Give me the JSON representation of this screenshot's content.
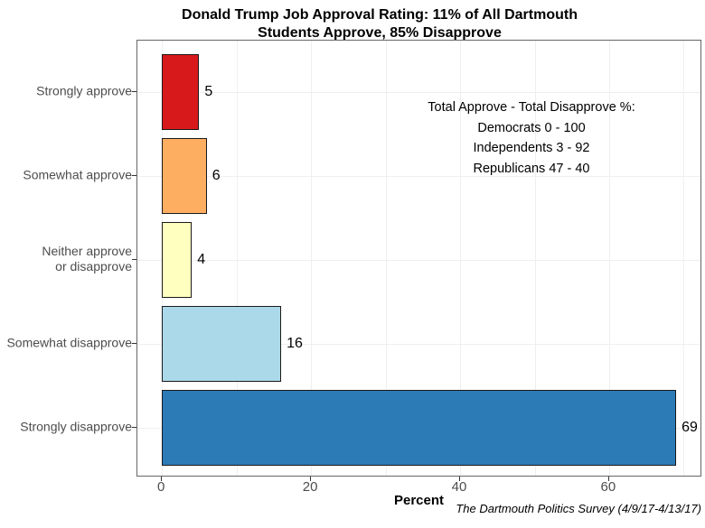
{
  "title_lines": [
    "Donald Trump Job Approval Rating: 11% of All Dartmouth",
    "Students Approve, 85% Disapprove"
  ],
  "annotation": {
    "lines": [
      "Total Approve - Total Disapprove %:",
      "Democrats 0 - 100",
      "Independents 3 - 92",
      "Republicans 47 - 40"
    ]
  },
  "caption": "The Dartmouth Politics Survey (4/9/17-4/13/17)",
  "chart_data": {
    "type": "bar",
    "orientation": "horizontal",
    "title": "Donald Trump Job Approval Rating: 11% of All Dartmouth Students Approve, 85% Disapprove",
    "categories": [
      "Strongly approve",
      "Somewhat approve",
      "Neither approve or disapprove",
      "Somewhat disapprove",
      "Strongly disapprove"
    ],
    "category_display_lines": [
      [
        "Strongly approve"
      ],
      [
        "Somewhat approve"
      ],
      [
        "Neither approve",
        "or disapprove"
      ],
      [
        "Somewhat disapprove"
      ],
      [
        "Strongly disapprove"
      ]
    ],
    "values": [
      5,
      6,
      4,
      16,
      69
    ],
    "value_labels": [
      "5",
      "6",
      "4",
      "16",
      "69"
    ],
    "bar_colors": [
      "#d7191c",
      "#fdae61",
      "#ffffbf",
      "#abd9e9",
      "#2c7bb6"
    ],
    "bar_border_color": "#1a1a1a",
    "xlabel": "Percent",
    "ylabel": "",
    "xticks": [
      0,
      20,
      40,
      60
    ],
    "xtick_labels": [
      "0",
      "20",
      "40",
      "60"
    ],
    "xlim": [
      -3.3,
      72.5
    ],
    "grid_step": 10,
    "grid": "on",
    "legend": "none",
    "text_color_axis": "#4d4d4d",
    "grid_color": "#efefef",
    "panel_border_color": "#666666",
    "annotation": "Total Approve - Total Disapprove %: Democrats 0 - 100; Independents 3 - 92; Republicans 47 - 40"
  }
}
